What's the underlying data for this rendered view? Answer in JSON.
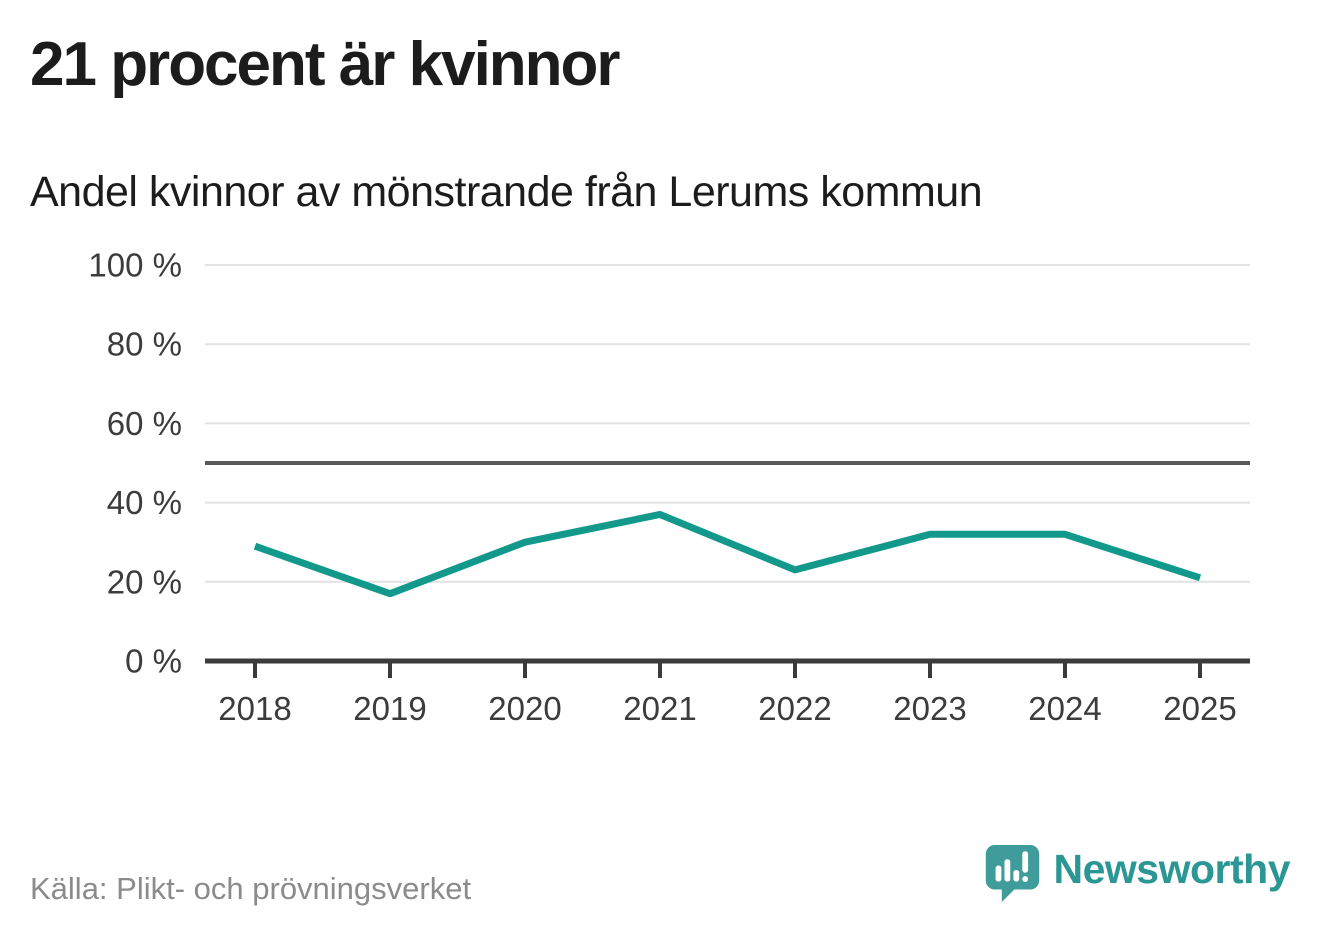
{
  "header": {
    "title": "21 procent är kvinnor",
    "subtitle": "Andel kvinnor av mönstrande från Lerums kommun"
  },
  "chart_data": {
    "type": "line",
    "title": "21 procent är kvinnor",
    "subtitle": "Andel kvinnor av mönstrande från Lerums kommun",
    "categories": [
      "2018",
      "2019",
      "2020",
      "2021",
      "2022",
      "2023",
      "2024",
      "2025"
    ],
    "series": [
      {
        "name": "Andel kvinnor av mönstrande",
        "color": "#12998C",
        "values": [
          29,
          17,
          30,
          37,
          23,
          32,
          32,
          21
        ]
      }
    ],
    "unit": "%",
    "ylim": [
      0,
      100
    ],
    "yticks": [
      0,
      20,
      40,
      60,
      80,
      100
    ],
    "ytick_labels": [
      "0 %",
      "20 %",
      "40 %",
      "60 %",
      "80 %",
      "100 %"
    ],
    "reference_line": {
      "value": 50
    },
    "grid": true,
    "legend": false
  },
  "footer": {
    "source": "Källa: Plikt- och prövningsverket",
    "brand": "Newsworthy"
  },
  "colors": {
    "accent": "#12998C",
    "title_text": "#1c1c1c",
    "axis_text": "#3c3c3c",
    "gridline": "#e2e2e2",
    "reference_line": "#58585a",
    "axis_line": "#3b3b3b",
    "source_text": "#8b8b8b",
    "logo_teal": "#3f9c9a",
    "wordmark_teal": "#2b9795"
  }
}
